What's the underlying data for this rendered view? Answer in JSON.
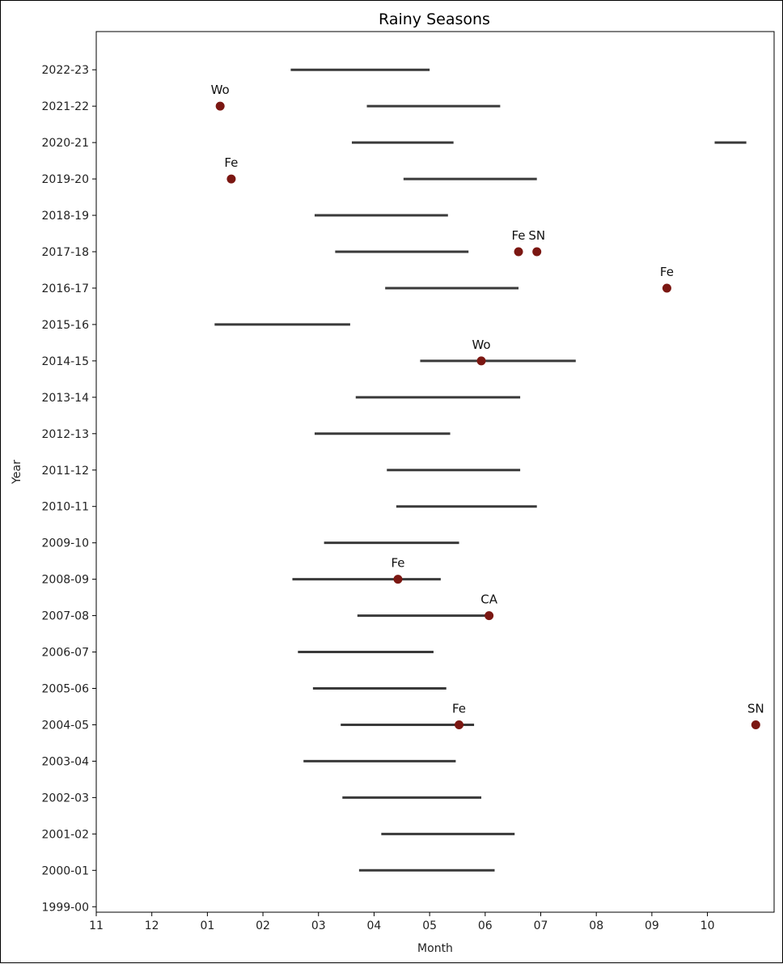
{
  "chart_data": {
    "type": "range",
    "title": "Rainy Seasons",
    "xlabel": "Month",
    "ylabel": "Year",
    "x_ticks": [
      "11",
      "12",
      "01",
      "02",
      "03",
      "04",
      "05",
      "06",
      "07",
      "08",
      "09",
      "10"
    ],
    "xlim": [
      0,
      12.2
    ],
    "y_ticks": [
      "1999-00",
      "2000-01",
      "2001-02",
      "2002-03",
      "2003-04",
      "2004-05",
      "2005-06",
      "2006-07",
      "2007-08",
      "2008-09",
      "2009-10",
      "2010-11",
      "2011-12",
      "2012-13",
      "2013-14",
      "2014-15",
      "2015-16",
      "2016-17",
      "2017-18",
      "2018-19",
      "2019-20",
      "2020-21",
      "2021-22",
      "2022-23"
    ],
    "ylim": [
      -0.15,
      24.05
    ],
    "line_color": "#3a3a3a",
    "point_color": "#7b1712",
    "seasons": [
      {
        "year": "2000-01",
        "segments": [
          [
            4.73,
            7.17
          ]
        ]
      },
      {
        "year": "2001-02",
        "segments": [
          [
            5.13,
            7.53
          ]
        ]
      },
      {
        "year": "2002-03",
        "segments": [
          [
            4.43,
            6.93
          ]
        ]
      },
      {
        "year": "2003-04",
        "segments": [
          [
            3.73,
            6.47
          ]
        ]
      },
      {
        "year": "2004-05",
        "segments": [
          [
            4.4,
            6.8
          ]
        ]
      },
      {
        "year": "2005-06",
        "segments": [
          [
            3.9,
            6.3
          ]
        ]
      },
      {
        "year": "2006-07",
        "segments": [
          [
            3.63,
            6.07
          ]
        ]
      },
      {
        "year": "2007-08",
        "segments": [
          [
            4.7,
            7.03
          ]
        ]
      },
      {
        "year": "2008-09",
        "segments": [
          [
            3.53,
            6.2
          ]
        ]
      },
      {
        "year": "2009-10",
        "segments": [
          [
            4.1,
            6.53
          ]
        ]
      },
      {
        "year": "2010-11",
        "segments": [
          [
            5.4,
            7.93
          ]
        ]
      },
      {
        "year": "2011-12",
        "segments": [
          [
            5.23,
            7.63
          ]
        ]
      },
      {
        "year": "2012-13",
        "segments": [
          [
            3.93,
            6.37
          ]
        ]
      },
      {
        "year": "2013-14",
        "segments": [
          [
            4.67,
            7.63
          ]
        ]
      },
      {
        "year": "2014-15",
        "segments": [
          [
            5.83,
            8.63
          ]
        ]
      },
      {
        "year": "2015-16",
        "segments": [
          [
            2.13,
            4.57
          ]
        ]
      },
      {
        "year": "2016-17",
        "segments": [
          [
            5.2,
            7.6
          ]
        ]
      },
      {
        "year": "2017-18",
        "segments": [
          [
            4.3,
            6.7
          ]
        ]
      },
      {
        "year": "2018-19",
        "segments": [
          [
            3.93,
            6.33
          ]
        ]
      },
      {
        "year": "2019-20",
        "segments": [
          [
            5.53,
            7.93
          ]
        ]
      },
      {
        "year": "2020-21",
        "segments": [
          [
            4.6,
            6.43
          ],
          [
            11.13,
            11.7
          ]
        ]
      },
      {
        "year": "2021-22",
        "segments": [
          [
            4.87,
            7.27
          ]
        ]
      },
      {
        "year": "2022-23",
        "segments": [
          [
            3.5,
            6.0
          ]
        ]
      }
    ],
    "events": [
      {
        "year": "2004-05",
        "x": 6.53,
        "label": "Fe"
      },
      {
        "year": "2004-05",
        "x": 11.87,
        "label": "SN"
      },
      {
        "year": "2007-08",
        "x": 7.07,
        "label": "CA"
      },
      {
        "year": "2008-09",
        "x": 5.43,
        "label": "Fe"
      },
      {
        "year": "2014-15",
        "x": 6.93,
        "label": "Wo"
      },
      {
        "year": "2016-17",
        "x": 10.27,
        "label": "Fe"
      },
      {
        "year": "2017-18",
        "x": 7.6,
        "label": "Fe"
      },
      {
        "year": "2017-18",
        "x": 7.93,
        "label": "SN"
      },
      {
        "year": "2019-20",
        "x": 2.43,
        "label": "Fe"
      },
      {
        "year": "2021-22",
        "x": 2.23,
        "label": "Wo"
      }
    ]
  }
}
